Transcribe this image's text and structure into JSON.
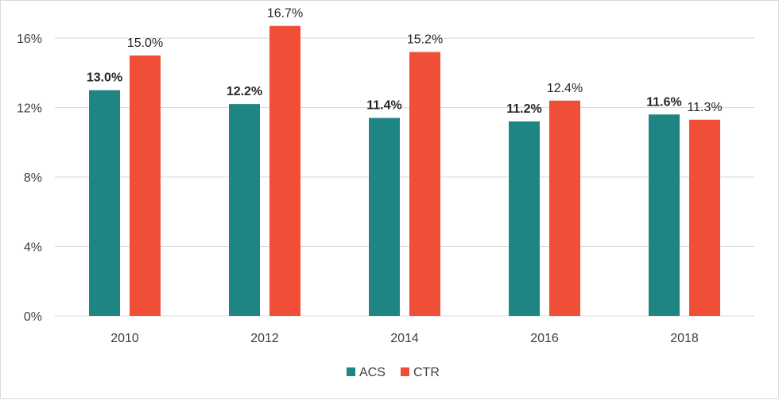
{
  "chart_data": {
    "type": "bar",
    "categories": [
      "2010",
      "2012",
      "2014",
      "2016",
      "2018"
    ],
    "series": [
      {
        "name": "ACS",
        "values": [
          13.0,
          12.2,
          11.4,
          11.2,
          11.6
        ],
        "labels": [
          "13.0%",
          "12.2%",
          "11.4%",
          "11.2%",
          "11.6%"
        ],
        "color": "#1f8583",
        "label_bold": true
      },
      {
        "name": "CTR",
        "values": [
          15.0,
          16.7,
          15.2,
          12.4,
          11.3
        ],
        "labels": [
          "15.0%",
          "16.7%",
          "15.2%",
          "12.4%",
          "11.3%"
        ],
        "color": "#f04e37",
        "label_bold": false
      }
    ],
    "y_ticks": [
      0,
      4,
      8,
      12,
      16
    ],
    "y_tick_labels": [
      "0%",
      "4%",
      "8%",
      "12%",
      "16%"
    ],
    "ylim": [
      0,
      16.7
    ],
    "grid": true,
    "legend_position": "bottom-center",
    "gridline_color": "#d9d9d9"
  }
}
